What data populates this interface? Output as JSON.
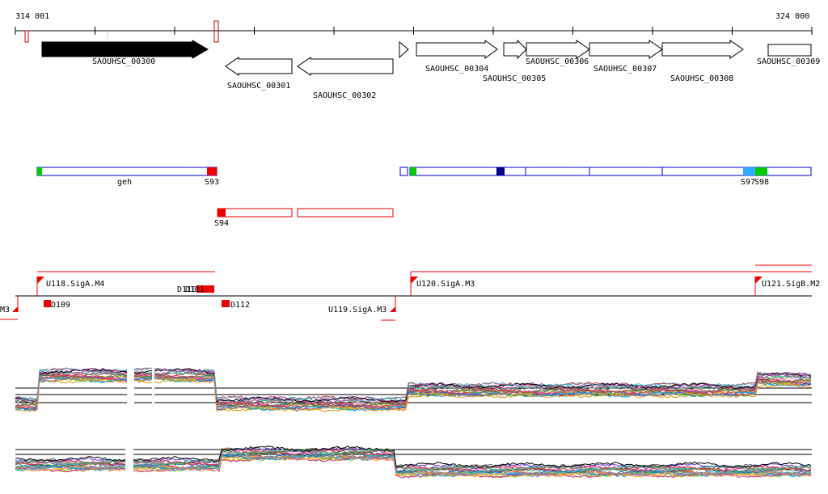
{
  "coords": {
    "start_label": "314 001",
    "end_label": "324 000"
  },
  "genes": [
    {
      "id": "g300",
      "name": "SAOUHSC_00300",
      "strand": "+",
      "filled": true
    },
    {
      "id": "g301",
      "name": "SAOUHSC_00301",
      "strand": "-",
      "filled": false
    },
    {
      "id": "g302",
      "name": "SAOUHSC_00302",
      "strand": "-",
      "filled": false
    },
    {
      "id": "g304",
      "name": "SAOUHSC_00304",
      "strand": "+",
      "filled": false
    },
    {
      "id": "g305",
      "name": "SAOUHSC_00305",
      "strand": "+",
      "filled": false
    },
    {
      "id": "g306",
      "name": "SAOUHSC_00306",
      "strand": "+",
      "filled": false
    },
    {
      "id": "g307",
      "name": "SAOUHSC_00307",
      "strand": "+",
      "filled": false
    },
    {
      "id": "g308",
      "name": "SAOUHSC_00308",
      "strand": "+",
      "filled": false
    },
    {
      "id": "g309",
      "name": "SAOUHSC_00309",
      "strand": "+",
      "filled": false
    }
  ],
  "segments": {
    "geh_label": "geh",
    "s93": "S93",
    "s94": "S94",
    "s97": "S97",
    "s98": "S98"
  },
  "promoters": {
    "m3_left": "M3",
    "u118": "U118.SigA.M4",
    "u119": "U119.SigA.M3",
    "u120": "U120.SigA.M3",
    "u121": "U121.SigB.M2",
    "d109": "D109",
    "d110": "D110",
    "d111": "D111",
    "d112": "D112"
  },
  "colors": {
    "gene_filled": "#000000",
    "segment_outline_red": "#ee0000",
    "segment_outline_blue": "#0000cc",
    "start_green": "#00cc00",
    "marker_red": "#ee0000",
    "marker_navy": "#000088",
    "marker_lightblue": "#33aaff"
  }
}
